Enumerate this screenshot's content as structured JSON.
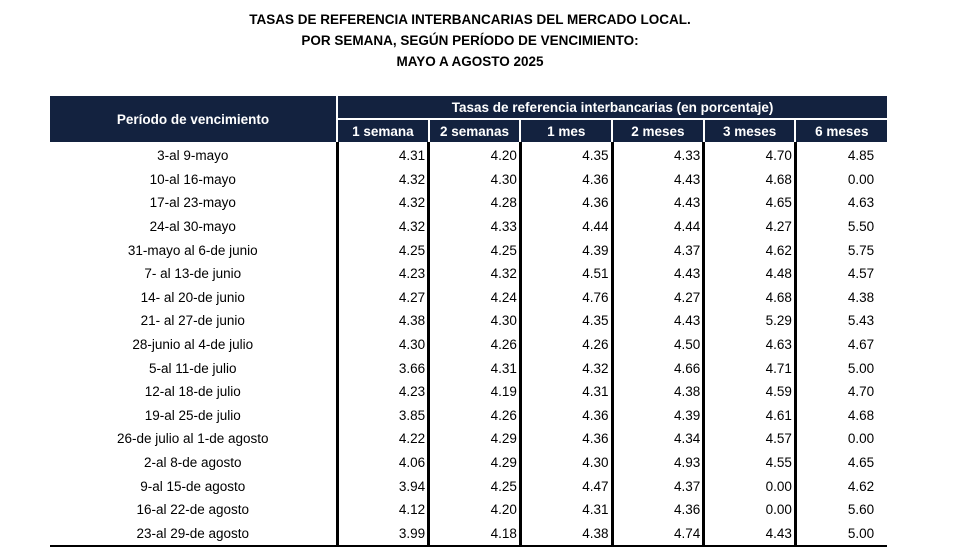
{
  "title": {
    "line1": "TASAS DE REFERENCIA INTERBANCARIAS DEL MERCADO LOCAL.",
    "line2": "POR SEMANA, SEGÚN PERÍODO DE VENCIMIENTO:",
    "line3": "MAYO A AGOSTO 2025"
  },
  "table": {
    "period_header": "Período de vencimiento",
    "group_header": "Tasas de referencia interbancarias (en porcentaje)",
    "columns": [
      "1 semana",
      "2 semanas",
      "1 mes",
      "2 meses",
      "3 meses",
      "6 meses"
    ],
    "header_color": "#13223f",
    "rows": [
      {
        "period": "3-al 9-mayo",
        "values": [
          "4.31",
          "4.20",
          "4.35",
          "4.33",
          "4.70",
          "4.85"
        ]
      },
      {
        "period": "10-al 16-mayo",
        "values": [
          "4.32",
          "4.30",
          "4.36",
          "4.43",
          "4.68",
          "0.00"
        ]
      },
      {
        "period": "17-al 23-mayo",
        "values": [
          "4.32",
          "4.28",
          "4.36",
          "4.43",
          "4.65",
          "4.63"
        ]
      },
      {
        "period": "24-al 30-mayo",
        "values": [
          "4.32",
          "4.33",
          "4.44",
          "4.44",
          "4.27",
          "5.50"
        ]
      },
      {
        "period": "31-mayo al 6-de junio",
        "values": [
          "4.25",
          "4.25",
          "4.39",
          "4.37",
          "4.62",
          "5.75"
        ]
      },
      {
        "period": "7- al 13-de junio",
        "values": [
          "4.23",
          "4.32",
          "4.51",
          "4.43",
          "4.48",
          "4.57"
        ]
      },
      {
        "period": "14- al 20-de junio",
        "values": [
          "4.27",
          "4.24",
          "4.76",
          "4.27",
          "4.68",
          "4.38"
        ]
      },
      {
        "period": "21- al 27-de junio",
        "values": [
          "4.38",
          "4.30",
          "4.35",
          "4.43",
          "5.29",
          "5.43"
        ]
      },
      {
        "period": "28-junio al 4-de julio",
        "values": [
          "4.30",
          "4.26",
          "4.26",
          "4.50",
          "4.63",
          "4.67"
        ]
      },
      {
        "period": "5-al 11-de julio",
        "values": [
          "3.66",
          "4.31",
          "4.32",
          "4.66",
          "4.71",
          "5.00"
        ]
      },
      {
        "period": "12-al 18-de julio",
        "values": [
          "4.23",
          "4.19",
          "4.31",
          "4.38",
          "4.59",
          "4.70"
        ]
      },
      {
        "period": "19-al 25-de julio",
        "values": [
          "3.85",
          "4.26",
          "4.36",
          "4.39",
          "4.61",
          "4.68"
        ]
      },
      {
        "period": "26-de julio al 1-de agosto",
        "values": [
          "4.22",
          "4.29",
          "4.36",
          "4.34",
          "4.57",
          "0.00"
        ]
      },
      {
        "period": "2-al 8-de agosto",
        "values": [
          "4.06",
          "4.29",
          "4.30",
          "4.93",
          "4.55",
          "4.65"
        ]
      },
      {
        "period": "9-al 15-de agosto",
        "values": [
          "3.94",
          "4.25",
          "4.47",
          "4.37",
          "0.00",
          "4.62"
        ]
      },
      {
        "period": "16-al 22-de agosto",
        "values": [
          "4.12",
          "4.20",
          "4.31",
          "4.36",
          "0.00",
          "5.60"
        ]
      },
      {
        "period": "23-al 29-de agosto",
        "values": [
          "3.99",
          "4.18",
          "4.38",
          "4.74",
          "4.43",
          "5.00"
        ]
      }
    ]
  }
}
